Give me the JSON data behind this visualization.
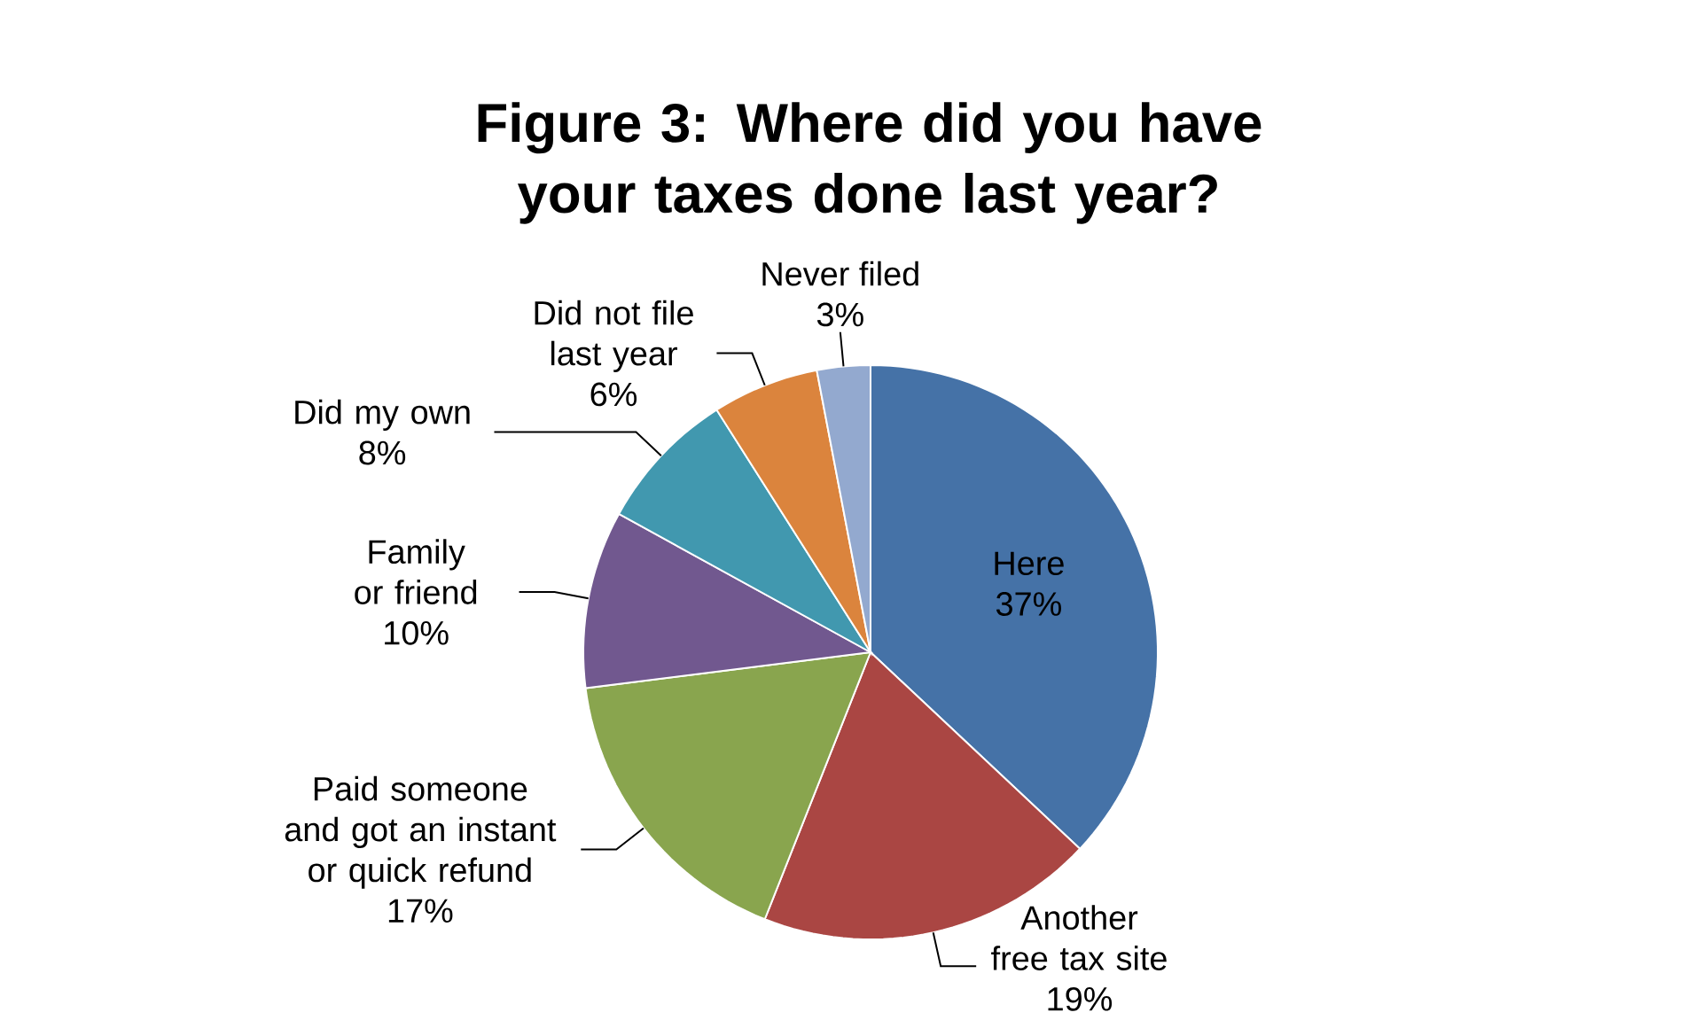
{
  "chart_data": {
    "type": "pie",
    "title": "Figure 3: Where did you have your taxes done last year?",
    "categories": [
      "Here",
      "Another free tax site",
      "Paid someone and got an instant or quick refund",
      "Family or friend",
      "Did my own",
      "Did not file last year",
      "Never filed"
    ],
    "values": [
      37,
      19,
      17,
      10,
      8,
      6,
      3
    ],
    "value_labels": [
      "37%",
      "19%",
      "17%",
      "10%",
      "8%",
      "6%",
      "3%"
    ],
    "colors": [
      "#4572a7",
      "#aa4643",
      "#89a54e",
      "#71588f",
      "#4198af",
      "#db843d",
      "#93a9cf"
    ],
    "legend": false
  }
}
